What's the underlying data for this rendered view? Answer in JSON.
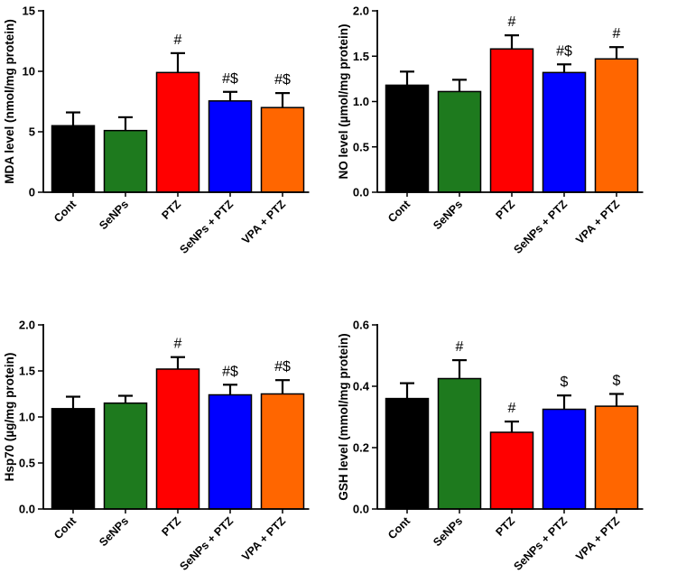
{
  "colors": [
    "#000000",
    "#1e7a1e",
    "#ff0000",
    "#0000ff",
    "#ff6600"
  ],
  "chart_data": [
    {
      "type": "bar",
      "categories": [
        "Cont",
        "SeNPs",
        "PTZ",
        "SeNPs + PTZ",
        "VPA + PTZ"
      ],
      "values": [
        5.5,
        5.1,
        9.9,
        7.55,
        7.0
      ],
      "errors": [
        1.1,
        1.1,
        1.6,
        0.75,
        1.2
      ],
      "annotations": [
        "",
        "",
        "#",
        "#$",
        "#$"
      ],
      "ylabel": "MDA level (nmol/mg protein)",
      "ylim": [
        0,
        15
      ],
      "yticks": [
        0,
        5,
        10,
        15
      ],
      "ytick_labels": [
        "0",
        "5",
        "10",
        "15"
      ]
    },
    {
      "type": "bar",
      "categories": [
        "Cont",
        "SeNPs",
        "PTZ",
        "SeNPs + PTZ",
        "VPA + PTZ"
      ],
      "values": [
        1.18,
        1.11,
        1.58,
        1.32,
        1.47
      ],
      "errors": [
        0.15,
        0.13,
        0.15,
        0.09,
        0.13
      ],
      "annotations": [
        "",
        "",
        "#",
        "#$",
        "#"
      ],
      "ylabel": "NO level (µmol/mg protein)",
      "ylim": [
        0,
        2
      ],
      "yticks": [
        0,
        0.5,
        1,
        1.5,
        2
      ],
      "ytick_labels": [
        "0.0",
        "0.5",
        "1.0",
        "1.5",
        "2.0"
      ]
    },
    {
      "type": "bar",
      "categories": [
        "Cont",
        "SeNPs",
        "PTZ",
        "SeNPs + PTZ",
        "VPA + PTZ"
      ],
      "values": [
        1.09,
        1.15,
        1.52,
        1.24,
        1.25
      ],
      "errors": [
        0.13,
        0.08,
        0.13,
        0.11,
        0.15
      ],
      "annotations": [
        "",
        "",
        "#",
        "#$",
        "#$"
      ],
      "ylabel": "Hsp70 (µg/mg protein)",
      "ylim": [
        0,
        2
      ],
      "yticks": [
        0,
        0.5,
        1,
        1.5,
        2
      ],
      "ytick_labels": [
        "0.0",
        "0.5",
        "1.0",
        "1.5",
        "2.0"
      ]
    },
    {
      "type": "bar",
      "categories": [
        "Cont",
        "SeNPs",
        "PTZ",
        "SeNPs + PTZ",
        "VPA + PTZ"
      ],
      "values": [
        0.36,
        0.425,
        0.25,
        0.325,
        0.335
      ],
      "errors": [
        0.05,
        0.06,
        0.035,
        0.045,
        0.04
      ],
      "annotations": [
        "",
        "#",
        "#",
        "$",
        "$"
      ],
      "ylabel": "GSH level (mmol/mg protein)",
      "ylim": [
        0,
        0.6
      ],
      "yticks": [
        0,
        0.2,
        0.4,
        0.6
      ],
      "ytick_labels": [
        "0.0",
        "0.2",
        "0.4",
        "0.6"
      ]
    }
  ]
}
